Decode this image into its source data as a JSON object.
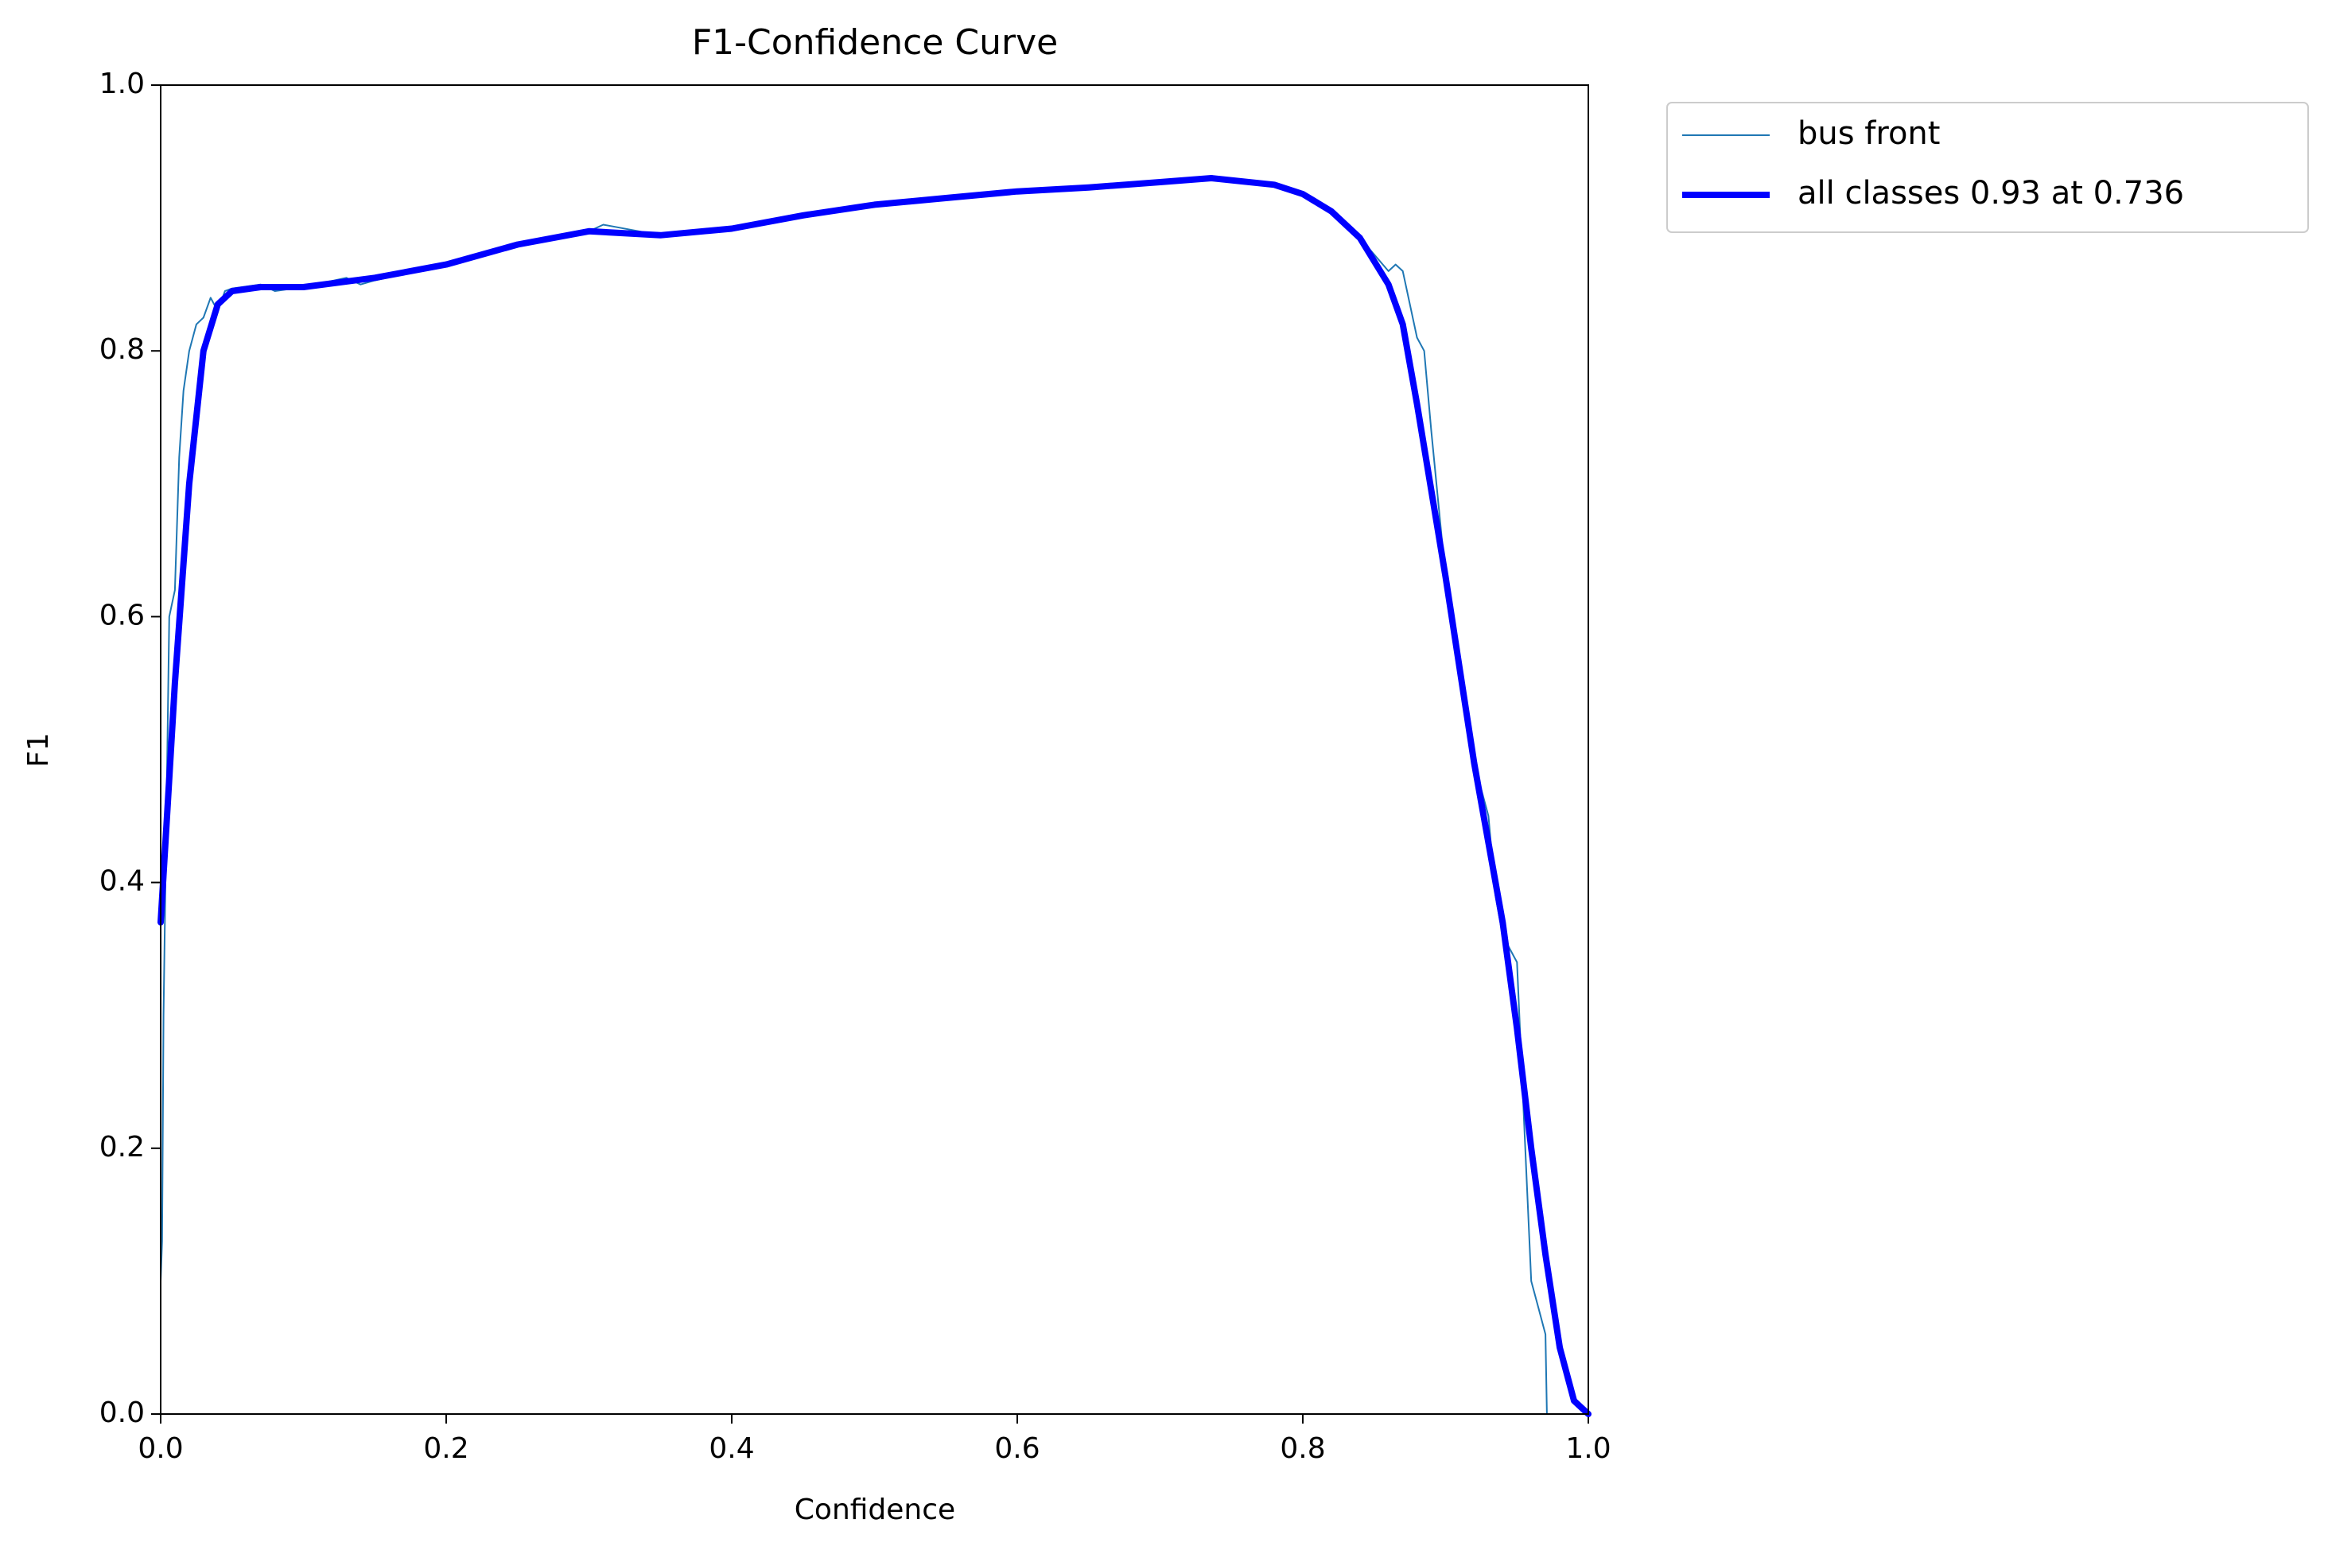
{
  "chart_data": {
    "type": "line",
    "title": "F1-Confidence Curve",
    "x_label": "Confidence",
    "y_label": "F1",
    "xlim": [
      0,
      1
    ],
    "ylim": [
      0,
      1
    ],
    "xticks": [
      {
        "value": 0,
        "label": "0.0"
      },
      0.2,
      0.4,
      0.6,
      0.8,
      {
        "value": 1,
        "label": "1.0"
      }
    ],
    "yticks": [
      {
        "value": 0,
        "label": "0.0"
      },
      0.2,
      0.4,
      0.6,
      0.8,
      {
        "value": 1,
        "label": "1.0"
      }
    ],
    "grid": false,
    "legend": "outside upper right",
    "series": [
      {
        "name": "bus front",
        "color": "#1f77b4",
        "width": 2,
        "x": [
          0,
          0.001,
          0.002,
          0.004,
          0.006,
          0.01,
          0.013,
          0.016,
          0.02,
          0.025,
          0.03,
          0.035,
          0.04,
          0.045,
          0.05,
          0.07,
          0.08,
          0.1,
          0.13,
          0.14,
          0.15,
          0.2,
          0.25,
          0.3,
          0.31,
          0.35,
          0.4,
          0.45,
          0.5,
          0.55,
          0.6,
          0.65,
          0.7,
          0.736,
          0.78,
          0.8,
          0.82,
          0.84,
          0.86,
          0.865,
          0.87,
          0.88,
          0.885,
          0.89,
          0.9,
          0.91,
          0.92,
          0.93,
          0.935,
          0.94,
          0.95,
          0.955,
          0.96,
          0.965,
          0.97,
          0.971
        ],
        "values": [
          0.1,
          0.13,
          0.3,
          0.45,
          0.6,
          0.62,
          0.72,
          0.77,
          0.8,
          0.82,
          0.825,
          0.84,
          0.83,
          0.845,
          0.847,
          0.85,
          0.845,
          0.848,
          0.855,
          0.85,
          0.853,
          0.865,
          0.88,
          0.89,
          0.895,
          0.887,
          0.892,
          0.902,
          0.91,
          0.915,
          0.92,
          0.923,
          0.927,
          0.93,
          0.925,
          0.918,
          0.905,
          0.885,
          0.86,
          0.865,
          0.86,
          0.81,
          0.8,
          0.74,
          0.63,
          0.56,
          0.49,
          0.45,
          0.39,
          0.36,
          0.34,
          0.22,
          0.1,
          0.08,
          0.06,
          0.0
        ]
      },
      {
        "name": "all classes 0.93 at 0.736",
        "color": "#0000ff",
        "width": 8,
        "x": [
          0,
          0.005,
          0.01,
          0.02,
          0.03,
          0.04,
          0.05,
          0.07,
          0.1,
          0.15,
          0.2,
          0.25,
          0.3,
          0.35,
          0.4,
          0.45,
          0.5,
          0.55,
          0.6,
          0.65,
          0.7,
          0.736,
          0.78,
          0.8,
          0.82,
          0.84,
          0.86,
          0.87,
          0.88,
          0.9,
          0.92,
          0.94,
          0.95,
          0.96,
          0.97,
          0.98,
          0.99,
          1.0
        ],
        "values": [
          0.37,
          0.46,
          0.55,
          0.7,
          0.8,
          0.835,
          0.845,
          0.848,
          0.848,
          0.855,
          0.865,
          0.88,
          0.89,
          0.887,
          0.892,
          0.902,
          0.91,
          0.915,
          0.92,
          0.923,
          0.927,
          0.93,
          0.925,
          0.918,
          0.905,
          0.885,
          0.85,
          0.82,
          0.76,
          0.63,
          0.49,
          0.37,
          0.29,
          0.2,
          0.12,
          0.05,
          0.01,
          0.0
        ]
      }
    ]
  }
}
